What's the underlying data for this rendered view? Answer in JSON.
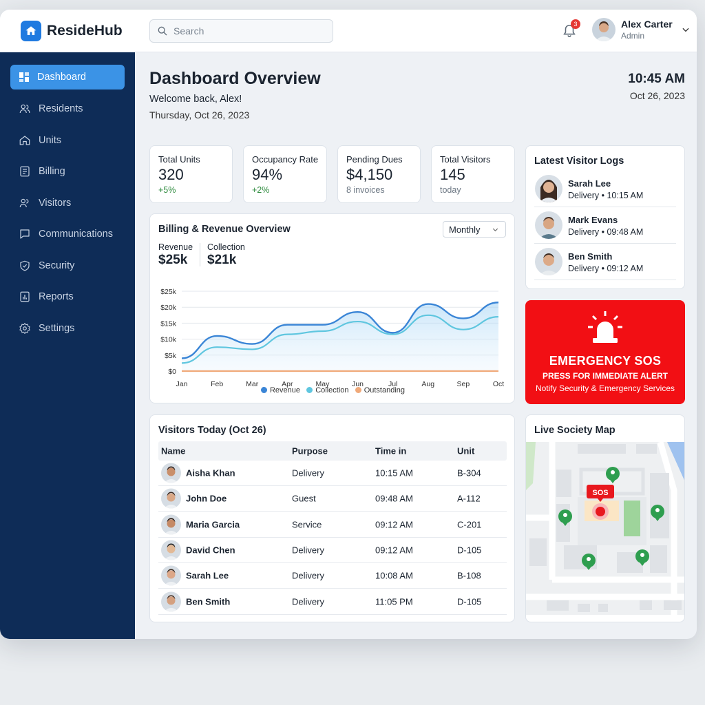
{
  "app": {
    "name": "ResideHub",
    "accent": "#1f7ae0"
  },
  "search": {
    "placeholder": "Search"
  },
  "notifications": {
    "count": "3"
  },
  "user": {
    "name": "Alex Carter",
    "role": "Admin"
  },
  "sidebar": {
    "items": [
      {
        "label": "Dashboard",
        "icon": "dashboard-icon",
        "active": true
      },
      {
        "label": "Residents",
        "icon": "residents-icon"
      },
      {
        "label": "Units",
        "icon": "home-icon"
      },
      {
        "label": "Billing",
        "icon": "billing-icon"
      },
      {
        "label": "Visitors",
        "icon": "visitors-icon"
      },
      {
        "label": "Communications",
        "icon": "chat-icon"
      },
      {
        "label": "Security",
        "icon": "shield-icon"
      },
      {
        "label": "Reports",
        "icon": "reports-icon"
      },
      {
        "label": "Settings",
        "icon": "gear-icon"
      }
    ]
  },
  "header": {
    "title": "Dashboard Overview",
    "welcome": "Welcome back, Alex!",
    "date": "Thursday, Oct 26, 2023",
    "time": "10:45 AM",
    "short_date": "Oct 26, 2023"
  },
  "stats": [
    {
      "label": "Total Units",
      "value": "320",
      "sub": "+5%"
    },
    {
      "label": "Occupancy Rate",
      "value": "94%",
      "sub": "+2%"
    },
    {
      "label": "Pending Dues",
      "value": "$4,150",
      "sub": "8 invoices"
    },
    {
      "label": "Total Visitors",
      "value": "145",
      "sub": "today"
    }
  ],
  "billing": {
    "title": "Billing & Revenue Overview",
    "period": "Monthly",
    "revenue_label": "Revenue",
    "revenue_value": "$25k",
    "collection_label": "Collection",
    "collection_value": "$21k"
  },
  "chart_data": {
    "type": "area",
    "x": [
      "Jan",
      "Feb",
      "Mar",
      "Apr",
      "May",
      "Jun",
      "Jul",
      "Aug",
      "Sep",
      "Oct"
    ],
    "yticks": [
      "$0",
      "$5k",
      "$10k",
      "$15k",
      "$20k",
      "$25k"
    ],
    "ylim": [
      0,
      25000
    ],
    "grid": true,
    "legend_position": "bottom",
    "series": [
      {
        "name": "Revenue",
        "color": "#3a85d6",
        "values": [
          4000,
          11000,
          8500,
          14500,
          14500,
          18500,
          12000,
          21000,
          16500,
          21500
        ]
      },
      {
        "name": "Collection",
        "color": "#5fc6df",
        "values": [
          2500,
          7500,
          6800,
          11500,
          12500,
          15500,
          11500,
          17500,
          13000,
          17000
        ]
      },
      {
        "name": "Outstanding",
        "color": "#f0a979",
        "values": [
          0,
          0,
          0,
          0,
          0,
          0,
          0,
          0,
          0,
          0
        ]
      }
    ]
  },
  "visitors_today": {
    "title": "Visitors Today (Oct 26)",
    "columns": [
      "Name",
      "Purpose",
      "Time in",
      "Unit"
    ],
    "rows": [
      {
        "name": "Aisha Khan",
        "purpose": "Delivery",
        "time": "10:15 AM",
        "unit": "B-304"
      },
      {
        "name": "John Doe",
        "purpose": "Guest",
        "time": "09:48 AM",
        "unit": "A-112"
      },
      {
        "name": "Maria Garcia",
        "purpose": "Service",
        "time": "09:12 AM",
        "unit": "C-201"
      },
      {
        "name": "David Chen",
        "purpose": "Delivery",
        "time": "09:12 AM",
        "unit": "D-105"
      },
      {
        "name": "Sarah Lee",
        "purpose": "Delivery",
        "time": "10:08 AM",
        "unit": "B-108"
      },
      {
        "name": "Ben Smith",
        "purpose": "Delivery",
        "time": "11:05 PM",
        "unit": "D-105"
      }
    ]
  },
  "visitor_logs": {
    "title": "Latest Visitor Logs",
    "items": [
      {
        "name": "Sarah Lee",
        "detail": "Delivery • 10:15 AM"
      },
      {
        "name": "Mark Evans",
        "detail": "Delivery • 09:48 AM"
      },
      {
        "name": "Ben Smith",
        "detail": "Delivery • 09:12 AM"
      }
    ]
  },
  "sos": {
    "title": "EMERGENCY SOS",
    "subtitle": "PRESS FOR IMMEDIATE ALERT",
    "note": "Notify Security & Emergency Services",
    "color": "#f20f14"
  },
  "map": {
    "title": "Live Society Map",
    "sos_label": "SOS"
  }
}
